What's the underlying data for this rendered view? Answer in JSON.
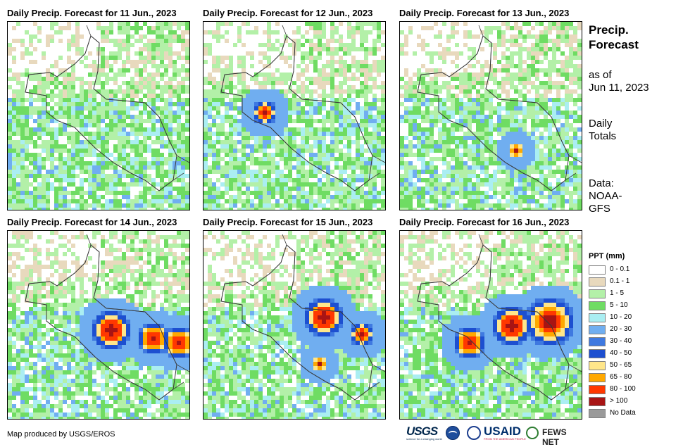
{
  "panels": [
    {
      "title": "Daily Precip. Forecast for 11 Jun., 2023"
    },
    {
      "title": "Daily Precip. Forecast for 12 Jun., 2023"
    },
    {
      "title": "Daily Precip. Forecast for 13 Jun., 2023"
    },
    {
      "title": "Daily Precip. Forecast for 14 Jun., 2023"
    },
    {
      "title": "Daily Precip. Forecast for 15 Jun., 2023"
    },
    {
      "title": "Daily Precip. Forecast for 16 Jun., 2023"
    }
  ],
  "side": {
    "title_line1": "Precip.",
    "title_line2": "Forecast",
    "asof_line1": "as of",
    "asof_line2": "Jun 11, 2023",
    "totals_line1": "Daily",
    "totals_line2": "Totals",
    "data_line1": "Data:",
    "data_line2": "NOAA-",
    "data_line3": "GFS"
  },
  "legend": {
    "title": "PPT (mm)",
    "items": [
      {
        "label": "0 - 0.1",
        "color": "#ffffff"
      },
      {
        "label": "0.1 - 1",
        "color": "#e8d9bd"
      },
      {
        "label": "1 - 5",
        "color": "#b3f0a8"
      },
      {
        "label": "5 - 10",
        "color": "#6fdc63"
      },
      {
        "label": "10 - 20",
        "color": "#aaeef2"
      },
      {
        "label": "20 - 30",
        "color": "#70aef0"
      },
      {
        "label": "30 - 40",
        "color": "#3f79e0"
      },
      {
        "label": "40 - 50",
        "color": "#1d4fd0"
      },
      {
        "label": "50 - 65",
        "color": "#ffe68a"
      },
      {
        "label": "65 - 80",
        "color": "#ffa800"
      },
      {
        "label": "80 - 100",
        "color": "#ff3800"
      },
      {
        "label": "> 100",
        "color": "#a81414"
      },
      {
        "label": "No Data",
        "color": "#9a9a9a"
      }
    ]
  },
  "credit": "Map produced by USGS/EROS",
  "logos": {
    "usgs": "USGS",
    "usgs_tagline": "science for a changing world",
    "usaid": "USAID",
    "usaid_tagline": "FROM THE AMERICAN PEOPLE",
    "fews": "FEWS NET"
  }
}
